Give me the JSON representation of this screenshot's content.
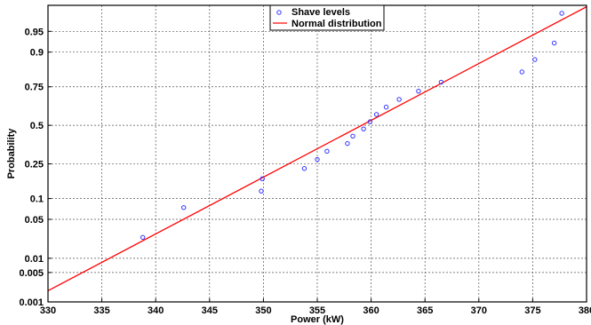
{
  "chart_data": {
    "type": "scatter",
    "title": "",
    "xlabel": "Power (kW)",
    "ylabel": "Probability",
    "xlim": [
      330,
      380
    ],
    "x_scale": "linear",
    "y_scale": "normal-probability",
    "xticks": [
      330,
      335,
      340,
      345,
      350,
      355,
      360,
      365,
      370,
      375,
      380
    ],
    "xtick_labels": [
      "330",
      "335",
      "340",
      "345",
      "350",
      "355",
      "360",
      "365",
      "370",
      "375",
      "380"
    ],
    "yticks": [
      0.001,
      0.005,
      0.01,
      0.05,
      0.1,
      0.25,
      0.5,
      0.75,
      0.9,
      0.95
    ],
    "ytick_labels": [
      "0.001",
      "0.005",
      "0.01",
      "0.05",
      "0.1",
      "0.25",
      "0.5",
      "0.75",
      "0.9",
      "0.95"
    ],
    "grid": true,
    "legend_position": "top-center",
    "series": [
      {
        "name": "Shave levels",
        "kind": "scatter",
        "marker": "circle",
        "color": "#3333ff",
        "points": [
          {
            "x": 338.8,
            "y": 0.025
          },
          {
            "x": 342.6,
            "y": 0.075
          },
          {
            "x": 349.8,
            "y": 0.125
          },
          {
            "x": 349.9,
            "y": 0.175
          },
          {
            "x": 353.8,
            "y": 0.225
          },
          {
            "x": 355.0,
            "y": 0.275
          },
          {
            "x": 355.9,
            "y": 0.325
          },
          {
            "x": 357.8,
            "y": 0.375
          },
          {
            "x": 358.3,
            "y": 0.425
          },
          {
            "x": 359.3,
            "y": 0.475
          },
          {
            "x": 359.9,
            "y": 0.525
          },
          {
            "x": 360.5,
            "y": 0.575
          },
          {
            "x": 361.4,
            "y": 0.625
          },
          {
            "x": 362.6,
            "y": 0.675
          },
          {
            "x": 364.4,
            "y": 0.725
          },
          {
            "x": 366.5,
            "y": 0.775
          },
          {
            "x": 374.0,
            "y": 0.825
          },
          {
            "x": 375.2,
            "y": 0.875
          },
          {
            "x": 377.0,
            "y": 0.925
          },
          {
            "x": 377.7,
            "y": 0.975
          }
        ]
      },
      {
        "name": "Normal distribution",
        "kind": "line",
        "color": "#ff0000",
        "points": [
          {
            "x": 330,
            "y": 0.0019
          },
          {
            "x": 380,
            "y": 0.981
          }
        ]
      }
    ]
  },
  "colors": {
    "axis": "#000000",
    "grid": "#555555",
    "fit_line": "#ff0000",
    "markers": "#3333ff"
  }
}
